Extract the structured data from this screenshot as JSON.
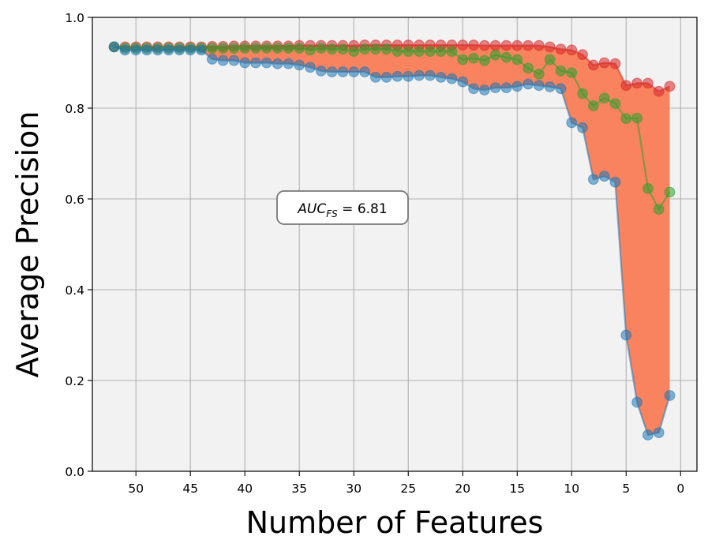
{
  "chart_data": {
    "type": "line",
    "title": "",
    "xlabel": "Number of Features",
    "ylabel": "Average Precision",
    "xlim": [
      54,
      -1.5
    ],
    "ylim": [
      0.0,
      1.0
    ],
    "x_inverted": true,
    "grid": true,
    "xticks": [
      50,
      45,
      40,
      35,
      30,
      25,
      20,
      15,
      10,
      5,
      0
    ],
    "yticks": [
      0.0,
      0.2,
      0.4,
      0.6,
      0.8,
      1.0
    ],
    "x": [
      52,
      51,
      50,
      49,
      48,
      47,
      46,
      45,
      44,
      43,
      42,
      41,
      40,
      39,
      38,
      37,
      36,
      35,
      34,
      33,
      32,
      31,
      30,
      29,
      28,
      27,
      26,
      25,
      24,
      23,
      22,
      21,
      20,
      19,
      18,
      17,
      16,
      15,
      14,
      13,
      12,
      11,
      10,
      9,
      8,
      7,
      6,
      5,
      4,
      3,
      2,
      1
    ],
    "series": [
      {
        "color": "#d62728",
        "values": [
          0.935,
          0.935,
          0.935,
          0.935,
          0.935,
          0.935,
          0.935,
          0.935,
          0.935,
          0.936,
          0.936,
          0.937,
          0.937,
          0.937,
          0.937,
          0.937,
          0.937,
          0.938,
          0.938,
          0.938,
          0.938,
          0.938,
          0.938,
          0.939,
          0.939,
          0.939,
          0.939,
          0.939,
          0.939,
          0.939,
          0.939,
          0.939,
          0.939,
          0.939,
          0.938,
          0.938,
          0.938,
          0.938,
          0.938,
          0.938,
          0.935,
          0.93,
          0.928,
          0.918,
          0.895,
          0.9,
          0.898,
          0.85,
          0.855,
          0.855,
          0.837,
          0.848
        ]
      },
      {
        "color": "#2ca02c",
        "values": [
          0.935,
          0.932,
          0.932,
          0.932,
          0.932,
          0.932,
          0.932,
          0.932,
          0.932,
          0.932,
          0.932,
          0.932,
          0.932,
          0.932,
          0.932,
          0.932,
          0.932,
          0.932,
          0.928,
          0.932,
          0.93,
          0.93,
          0.925,
          0.93,
          0.93,
          0.93,
          0.925,
          0.925,
          0.925,
          0.925,
          0.925,
          0.925,
          0.907,
          0.91,
          0.905,
          0.917,
          0.912,
          0.907,
          0.888,
          0.875,
          0.907,
          0.882,
          0.878,
          0.832,
          0.805,
          0.822,
          0.81,
          0.777,
          0.778,
          0.623,
          0.577,
          0.615
        ]
      },
      {
        "color": "#1f77b4",
        "values": [
          0.935,
          0.928,
          0.928,
          0.928,
          0.928,
          0.928,
          0.928,
          0.928,
          0.928,
          0.908,
          0.905,
          0.905,
          0.9,
          0.9,
          0.9,
          0.898,
          0.898,
          0.895,
          0.89,
          0.882,
          0.88,
          0.88,
          0.88,
          0.88,
          0.868,
          0.868,
          0.87,
          0.87,
          0.872,
          0.872,
          0.868,
          0.865,
          0.858,
          0.843,
          0.84,
          0.845,
          0.845,
          0.848,
          0.853,
          0.85,
          0.847,
          0.843,
          0.768,
          0.757,
          0.643,
          0.65,
          0.637,
          0.3,
          0.152,
          0.08,
          0.085,
          0.167
        ]
      }
    ],
    "fill_between": {
      "upper_series": 0,
      "lower_series": 2,
      "color": "#f9835e"
    },
    "annotation": {
      "prefix": "AUC",
      "subscript": "FS",
      "text": " = 6.81"
    }
  }
}
